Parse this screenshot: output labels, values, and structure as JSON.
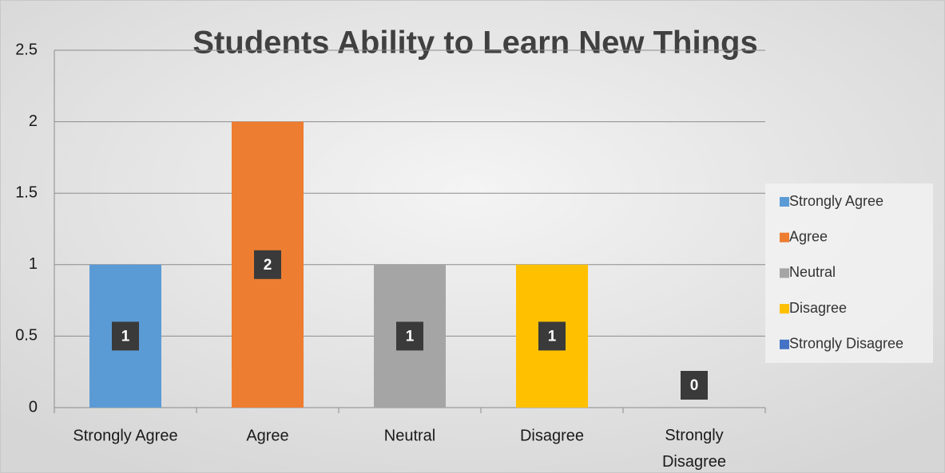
{
  "chart_data": {
    "type": "bar",
    "title": "Students Ability to Learn New Things",
    "categories": [
      "Strongly Agree",
      "Agree",
      "Neutral",
      "Disagree",
      "Strongly Disagree"
    ],
    "values": [
      1,
      2,
      1,
      1,
      0
    ],
    "colors": [
      "#5b9bd5",
      "#ed7d31",
      "#a5a5a5",
      "#ffc000",
      "#4472c4"
    ],
    "ylim": [
      0,
      2.5
    ],
    "yticks": [
      0,
      0.5,
      1,
      1.5,
      2,
      2.5
    ],
    "grid": true,
    "legend": "right"
  }
}
